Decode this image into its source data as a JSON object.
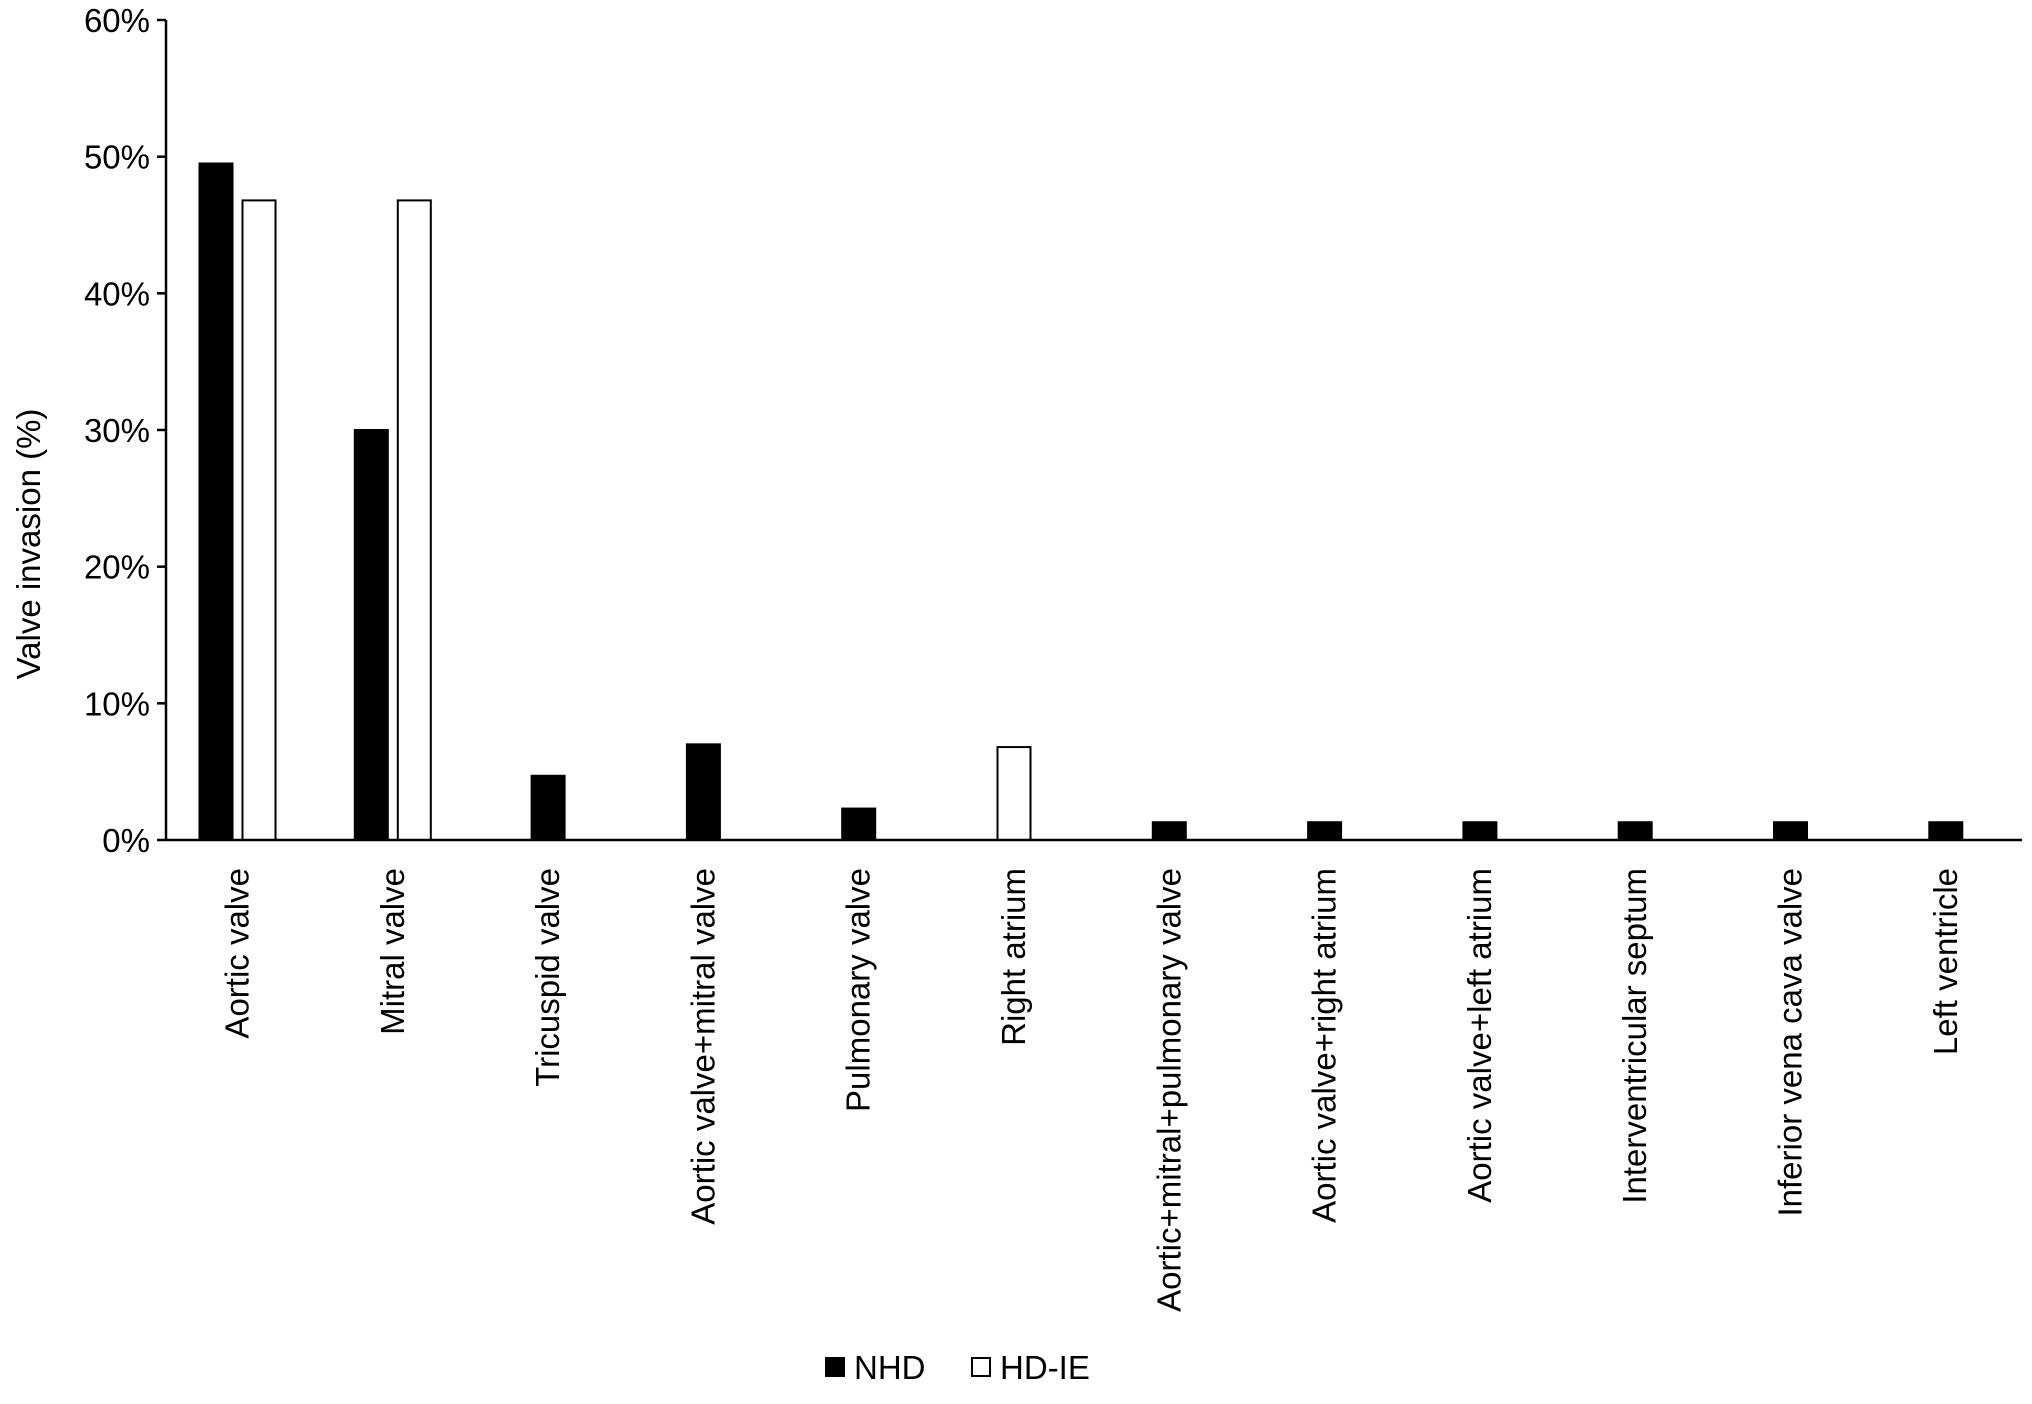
{
  "chart_data": {
    "type": "bar",
    "title": "",
    "xlabel": "",
    "ylabel": "Valve invasion (%)",
    "ylim": [
      0,
      60
    ],
    "yticks": [
      "0%",
      "10%",
      "20%",
      "30%",
      "40%",
      "50%",
      "60%"
    ],
    "grid": false,
    "legend_position": "bottom-center",
    "categories": [
      "Aortic valve",
      "Mitral valve",
      "Tricuspid valve",
      "Aortic valve+mitral valve",
      "Pulmonary valve",
      "Right atrium",
      "Aortic+mitral+pulmonary valve",
      "Aortic valve+right atrium",
      "Aortic valve+left atrium",
      "Interventricular septum",
      "Inferior vena cava valve",
      "Left ventricle"
    ],
    "series": [
      {
        "name": "NHD",
        "color": "#000000",
        "values": [
          49.5,
          30,
          4.7,
          7,
          2.3,
          0,
          1.3,
          1.3,
          1.3,
          1.3,
          1.3,
          1.3
        ]
      },
      {
        "name": "HD-IE",
        "color": "#ffffff",
        "values": [
          46.8,
          46.8,
          0,
          0,
          0,
          6.8,
          0,
          0,
          0,
          0,
          0,
          0
        ]
      }
    ]
  }
}
